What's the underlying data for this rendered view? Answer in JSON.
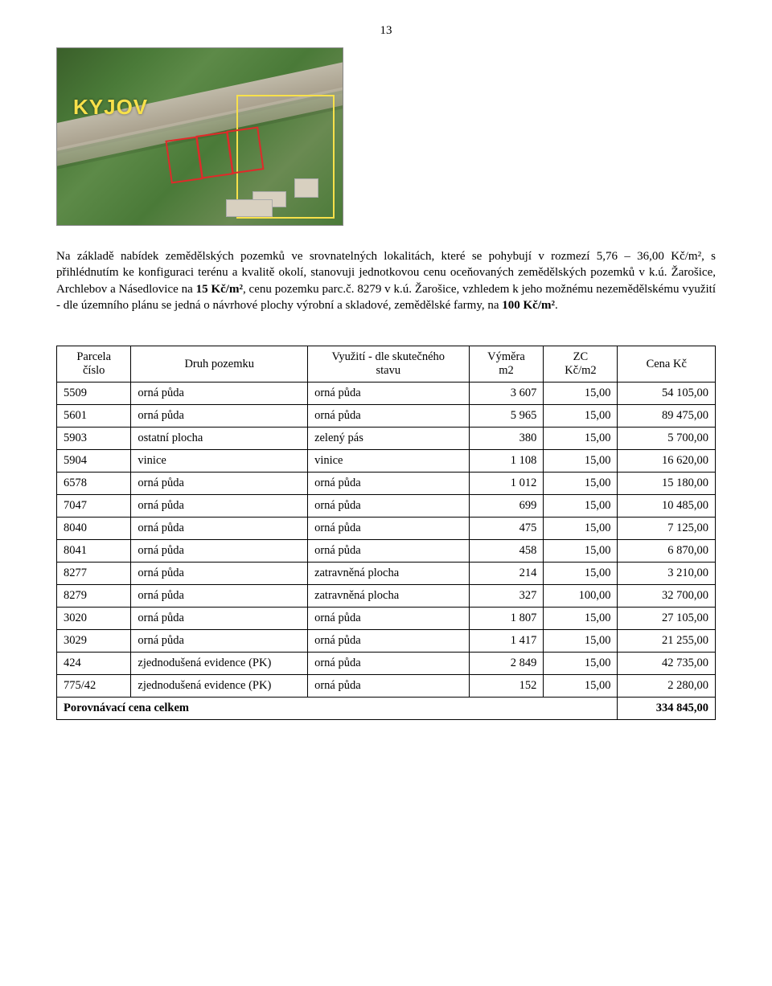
{
  "page_number": "13",
  "aerial": {
    "map_label": "KYJOV",
    "map_label_color": "#f7e04a",
    "map_base_color": "#4a7a38",
    "rail_color": "#bfb9a8",
    "red_box_border": "#e02a2a",
    "yellow_box_border": "#f7e04a"
  },
  "paragraph_html": "Na základě nabídek zemědělských pozemků ve srovnatelných lokalitách, které se pohybují v rozmezí 5,76 – 36,00 Kč/m², s přihlédnutím ke konfiguraci terénu a kvalitě okolí, stanovuji jednotkovou cenu oceňovaných zemědělských pozemků v k.ú. Žarošice, Archlebov a Násedlovice na <b>15 Kč/m²</b>, cenu pozemku parc.č. 8279 v k.ú. Žarošice, vzhledem k jeho možnému nezemědělskému využití - dle územního plánu se jedná o návrhové plochy výrobní a skladové, zemědělské farmy, na <b>100 Kč/m²</b>.",
  "table": {
    "headers": {
      "parcela": "Parcela\nčíslo",
      "druh": "Druh pozemku",
      "vyuziti": "Využití - dle skutečného\nstavu",
      "vymera": "Výměra\nm2",
      "zc": "ZC\nKč/m2",
      "cena": "Cena Kč"
    },
    "rows": [
      {
        "parc": "5509",
        "druh": "orná půda",
        "vyuz": "orná půda",
        "vym": "3 607",
        "zc": "15,00",
        "cena": "54 105,00"
      },
      {
        "parc": "5601",
        "druh": "orná půda",
        "vyuz": "orná půda",
        "vym": "5 965",
        "zc": "15,00",
        "cena": "89 475,00"
      },
      {
        "parc": "5903",
        "druh": "ostatní plocha",
        "vyuz": "zelený pás",
        "vym": "380",
        "zc": "15,00",
        "cena": "5 700,00"
      },
      {
        "parc": "5904",
        "druh": "vinice",
        "vyuz": "vinice",
        "vym": "1 108",
        "zc": "15,00",
        "cena": "16 620,00"
      },
      {
        "parc": "6578",
        "druh": "orná půda",
        "vyuz": "orná půda",
        "vym": "1 012",
        "zc": "15,00",
        "cena": "15 180,00"
      },
      {
        "parc": "7047",
        "druh": "orná půda",
        "vyuz": "orná půda",
        "vym": "699",
        "zc": "15,00",
        "cena": "10 485,00"
      },
      {
        "parc": "8040",
        "druh": "orná půda",
        "vyuz": "orná půda",
        "vym": "475",
        "zc": "15,00",
        "cena": "7 125,00"
      },
      {
        "parc": "8041",
        "druh": "orná půda",
        "vyuz": "orná půda",
        "vym": "458",
        "zc": "15,00",
        "cena": "6 870,00"
      },
      {
        "parc": "8277",
        "druh": "orná půda",
        "vyuz": "zatravněná plocha",
        "vym": "214",
        "zc": "15,00",
        "cena": "3 210,00"
      },
      {
        "parc": "8279",
        "druh": "orná půda",
        "vyuz": "zatravněná plocha",
        "vym": "327",
        "zc": "100,00",
        "cena": "32 700,00"
      },
      {
        "parc": "3020",
        "druh": "orná půda",
        "vyuz": "orná půda",
        "vym": "1 807",
        "zc": "15,00",
        "cena": "27 105,00"
      },
      {
        "parc": "3029",
        "druh": "orná půda",
        "vyuz": "orná půda",
        "vym": "1 417",
        "zc": "15,00",
        "cena": "21 255,00"
      },
      {
        "parc": "424",
        "druh": "zjednodušená evidence (PK)",
        "vyuz": "orná půda",
        "vym": "2 849",
        "zc": "15,00",
        "cena": "42 735,00"
      },
      {
        "parc": "775/42",
        "druh": "zjednodušená evidence (PK)",
        "vyuz": "orná půda",
        "vym": "152",
        "zc": "15,00",
        "cena": "2 280,00"
      }
    ],
    "total_label": "Porovnávací cena celkem",
    "total_value": "334 845,00"
  }
}
